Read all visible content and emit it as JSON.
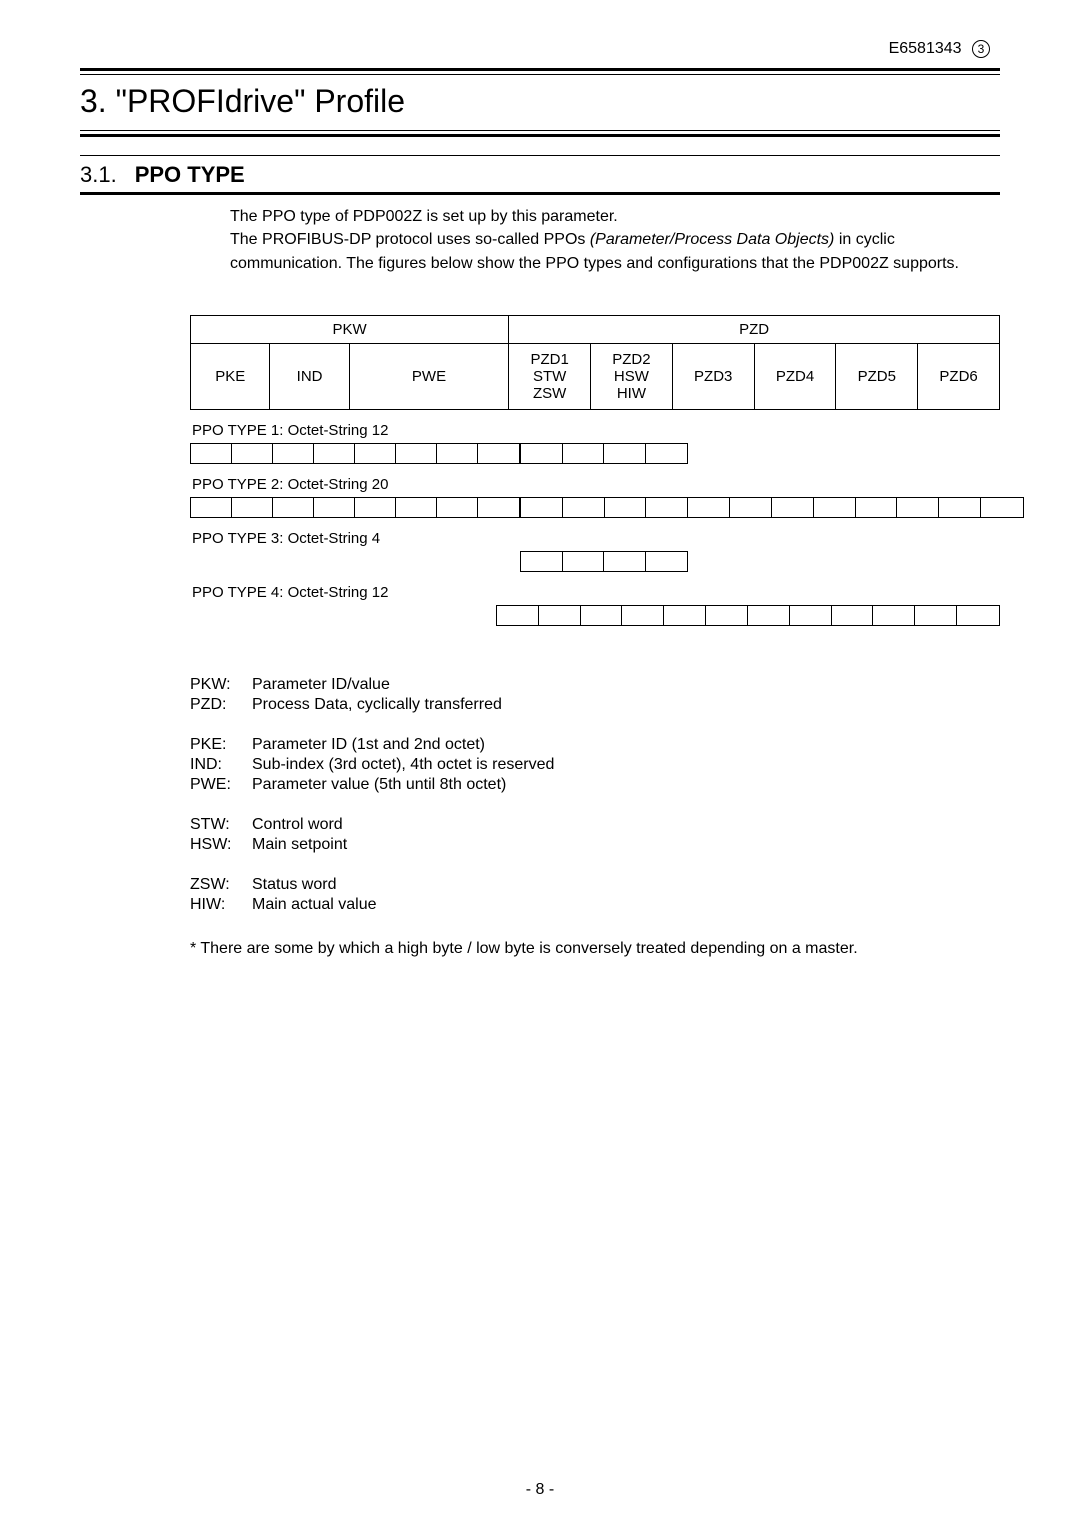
{
  "doc_id": "E6581343",
  "doc_rev": "3",
  "chapter_num": "3.",
  "chapter_title": "\"PROFIdrive\" Profile",
  "section_num": "3.1.",
  "section_title": "PPO TYPE",
  "intro_line1": "The PPO type of PDP002Z is set up by this parameter.",
  "intro_line2a": "The PROFIBUS-DP protocol uses so-called PPOs ",
  "intro_line2b_italic": "(Parameter/Process Data Objects)",
  "intro_line2c": " in cyclic communication. The figures below show the PPO types and configurations that the PDP002Z supports.",
  "header_table": {
    "pkw_label": "PKW",
    "pzd_label": "PZD",
    "pkw_cols": [
      "PKE",
      "IND",
      "PWE"
    ],
    "pzd_cols": [
      {
        "l1": "PZD1",
        "l2": "STW",
        "l3": "ZSW"
      },
      {
        "l1": "PZD2",
        "l2": "HSW",
        "l3": "HIW"
      },
      {
        "l1": "PZD3",
        "l2": "",
        "l3": ""
      },
      {
        "l1": "PZD4",
        "l2": "",
        "l3": ""
      },
      {
        "l1": "PZD5",
        "l2": "",
        "l3": ""
      },
      {
        "l1": "PZD6",
        "l2": "",
        "l3": ""
      }
    ]
  },
  "ppo_types": [
    {
      "label": "PPO TYPE 1: Octet-String 12",
      "pkw_octets": 8,
      "pzd_octets": 4
    },
    {
      "label": "PPO TYPE 2: Octet-String 20",
      "pkw_octets": 8,
      "pzd_octets": 12
    },
    {
      "label": "PPO TYPE 3: Octet-String 4",
      "pkw_octets": 0,
      "pzd_octets": 4
    },
    {
      "label": "PPO TYPE 4: Octet-String 12",
      "pkw_octets": 0,
      "pzd_octets": 12
    }
  ],
  "legend": [
    [
      {
        "t": "PKW:",
        "d": "Parameter ID/value"
      },
      {
        "t": "PZD:",
        "d": "Process Data, cyclically transferred"
      }
    ],
    [
      {
        "t": "PKE:",
        "d": "Parameter ID (1st and 2nd octet)"
      },
      {
        "t": "IND:",
        "d": "Sub-index (3rd octet), 4th octet is reserved"
      },
      {
        "t": "PWE:",
        "d": "Parameter value (5th until 8th octet)"
      }
    ],
    [
      {
        "t": "STW:",
        "d": "Control word"
      },
      {
        "t": "HSW:",
        "d": "Main setpoint"
      }
    ],
    [
      {
        "t": "ZSW:",
        "d": "Status word"
      },
      {
        "t": "HIW:",
        "d": "Main actual value"
      }
    ]
  ],
  "footnote": "* There are some by which a high byte / low byte is conversely treated depending on a master.",
  "page_number": "- 8 -",
  "colors": {
    "text": "#000000",
    "bg": "#ffffff",
    "rule": "#000000"
  }
}
